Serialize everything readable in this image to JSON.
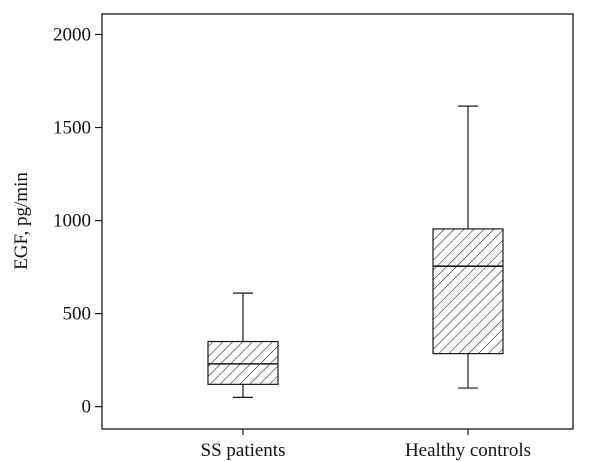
{
  "chart_data": {
    "type": "boxplot",
    "title": "",
    "xlabel": "",
    "ylabel": "EGF, pg/min",
    "ylim": [
      -120,
      2110
    ],
    "yticks": [
      0,
      500,
      1000,
      1500,
      2000
    ],
    "grid": false,
    "legend": "none",
    "box_fill_pattern": "diagonal hatch",
    "colors": {
      "line": "#1a1a1a",
      "background": "#ffffff"
    },
    "categories": [
      "SS patients",
      "Healthy controls"
    ],
    "boxes": [
      {
        "category": "SS patients",
        "whisker_low": 50,
        "q1": 120,
        "median": 230,
        "q3": 350,
        "whisker_high": 610
      },
      {
        "category": "Healthy controls",
        "whisker_low": 100,
        "q1": 285,
        "median": 755,
        "q3": 955,
        "whisker_high": 1615
      }
    ]
  }
}
